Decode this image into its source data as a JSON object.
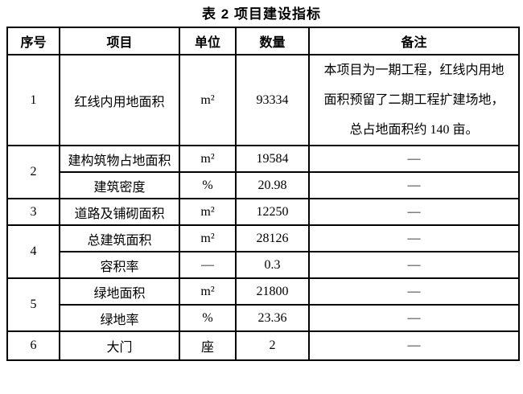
{
  "title": "表 2 项目建设指标",
  "table": {
    "headers": [
      "序号",
      "项目",
      "单位",
      "数量",
      "备注"
    ],
    "rows": [
      {
        "no": "1",
        "items": [
          {
            "name": "红线内用地面积",
            "unit": "m²",
            "qty": "93334",
            "note": "本项目为一期工程，红线内用地面积预留了二期工程扩建场地，总占地面积约 140 亩。",
            "note_lines": [
              "本项目为一期工程，红线内用地",
              "面积预留了二期工程扩建场地，",
              "总占地面积约 140 亩。"
            ]
          }
        ]
      },
      {
        "no": "2",
        "items": [
          {
            "name": "建构筑物占地面积",
            "unit": "m²",
            "qty": "19584",
            "note": "—"
          },
          {
            "name": "建筑密度",
            "unit": "%",
            "qty": "20.98",
            "note": "—"
          }
        ]
      },
      {
        "no": "3",
        "items": [
          {
            "name": "道路及铺砌面积",
            "unit": "m²",
            "qty": "12250",
            "note": "—"
          }
        ]
      },
      {
        "no": "4",
        "items": [
          {
            "name": "总建筑面积",
            "unit": "m²",
            "qty": "28126",
            "note": "—"
          },
          {
            "name": "容积率",
            "unit": "—",
            "qty": "0.3",
            "note": "—"
          }
        ]
      },
      {
        "no": "5",
        "items": [
          {
            "name": "绿地面积",
            "unit": "m²",
            "qty": "21800",
            "note": "—"
          },
          {
            "name": "绿地率",
            "unit": "%",
            "qty": "23.36",
            "note": "—"
          }
        ]
      },
      {
        "no": "6",
        "items": [
          {
            "name": "大门",
            "unit": "座",
            "qty": "2",
            "note": "—"
          }
        ]
      }
    ]
  }
}
